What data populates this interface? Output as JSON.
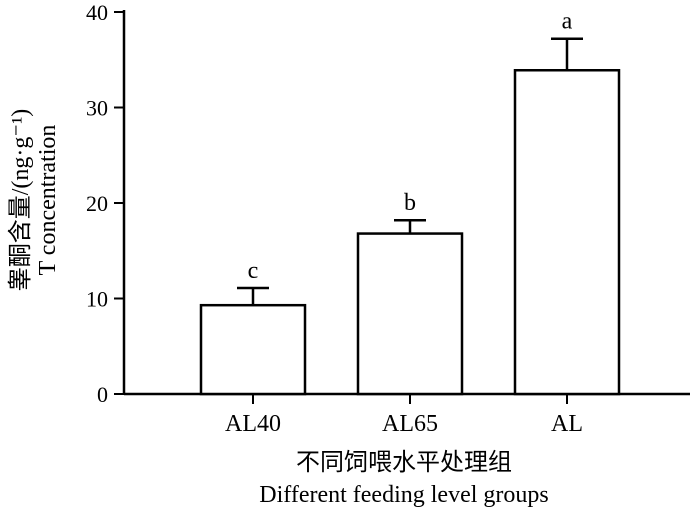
{
  "chart_data": {
    "type": "bar",
    "categories": [
      "AL40",
      "AL65",
      "AL"
    ],
    "values": [
      9.3,
      16.8,
      33.9
    ],
    "errors": [
      1.8,
      1.4,
      3.3
    ],
    "significance": [
      "c",
      "b",
      "a"
    ],
    "xlabel_cn": "不同饲喂水平处理组",
    "xlabel_en": "Different feeding level groups",
    "ylabel_cn": "睾酮含量/(ng·g⁻¹)",
    "ylabel_en": "T concentration",
    "ylim": [
      0,
      40
    ],
    "yticks": [
      0,
      10,
      20,
      30,
      40
    ],
    "grid": false,
    "bar_color": "#ffffff",
    "edge_color": "#000000"
  }
}
